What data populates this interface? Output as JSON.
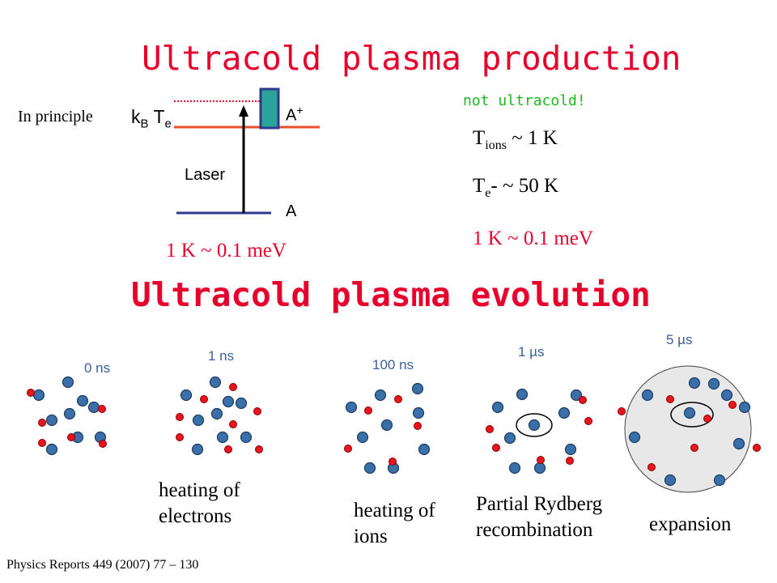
{
  "titles": {
    "production": "Ultracold plasma production",
    "evolution": "Ultracold plasma evolution"
  },
  "energy_diagram": {
    "in_principle": "In principle",
    "kbte_k": "k",
    "kbte_b": "B",
    "kbte_t": " T",
    "kbte_e": "e",
    "upper_level": "A",
    "upper_level_charge": "+",
    "lower_level": "A",
    "laser": "Laser",
    "energy_equivalence": "1 K ~ 0.1 meV"
  },
  "temperatures": {
    "note": "not ultracold!",
    "ions_prefix": "T",
    "ions_sub": "ions",
    "ions_value": " ~ 1 K",
    "electrons_prefix": "T",
    "electrons_sub": "e",
    "electrons_value": "- ~ 50 K",
    "energy_equivalence": "1 K ~ 0.1 meV"
  },
  "stages": [
    {
      "time": "0 ns",
      "caption": ""
    },
    {
      "time": "1 ns",
      "caption": "heating of electrons"
    },
    {
      "time": "100 ns",
      "caption": "heating of ions"
    },
    {
      "time": "1 µs",
      "caption": "Partial Rydberg recombination"
    },
    {
      "time": "5 µs",
      "caption": "expansion"
    }
  ],
  "colors": {
    "title": "#e8002d",
    "ion": "#3a6fa8",
    "electron": "#e8141e",
    "note": "#1db81d",
    "level_upper": "#e8502d",
    "level_lower": "#2e3a8c",
    "excitation_bar": "#2aa39a"
  },
  "reference": "Physics Reports 449 (2007) 77 – 130"
}
